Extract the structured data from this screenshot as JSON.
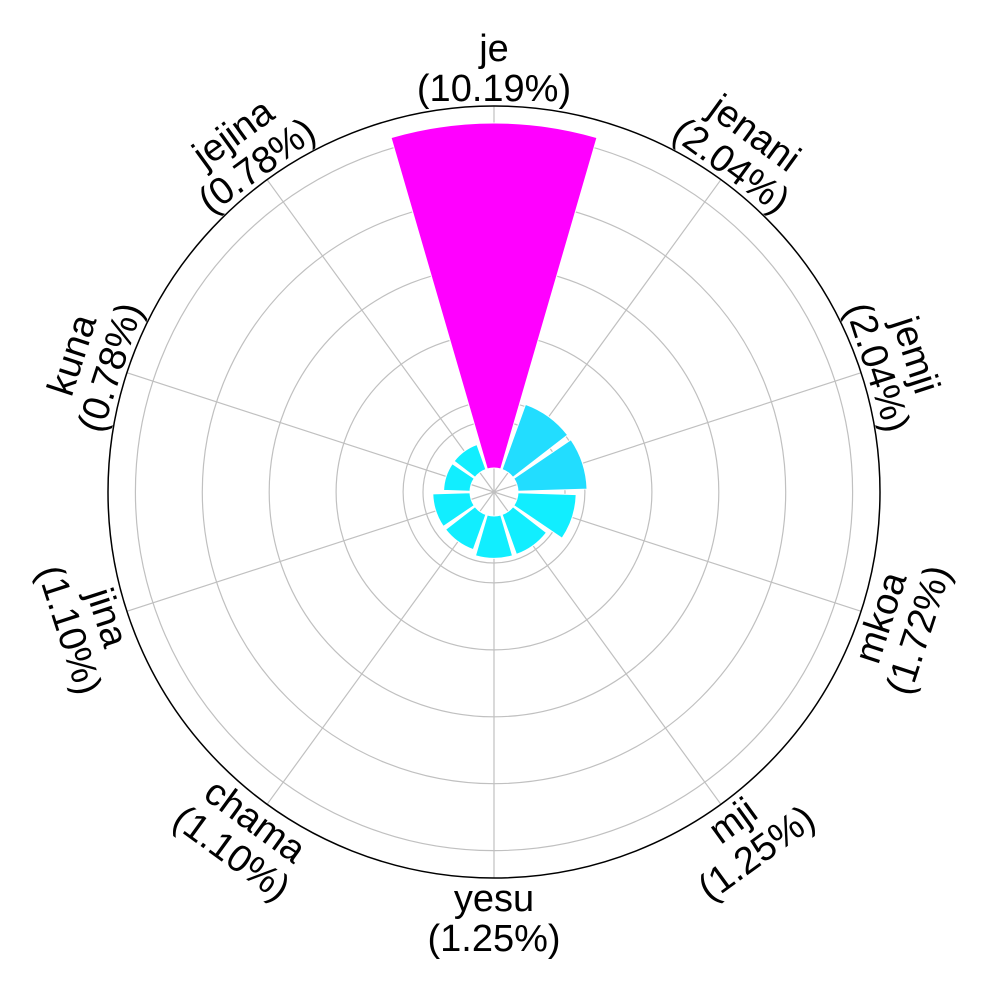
{
  "chart_data": {
    "type": "polar-bar",
    "title": "",
    "categories": [
      "je",
      "jenani",
      "jemji",
      "mkoa",
      "mji",
      "yesu",
      "chama",
      "jina",
      "kuna",
      "jejina"
    ],
    "percent_labels": [
      "(10.19%)",
      "(2.04%)",
      "(2.04%)",
      "(1.72%)",
      "(1.25%)",
      "(1.25%)",
      "(1.10%)",
      "(1.10%)",
      "(0.78%)",
      "(0.78%)"
    ],
    "values": [
      10.19,
      2.04,
      2.04,
      1.72,
      1.25,
      1.25,
      1.1,
      1.1,
      0.78,
      0.78
    ],
    "bar_colors": [
      "#ff00ff",
      "#22ddff",
      "#22ddff",
      "#11eeff",
      "#11eeff",
      "#11eeff",
      "#11eeff",
      "#11eeff",
      "#11eeff",
      "#11eeff"
    ],
    "start_angle": "top",
    "direction": "clockwise",
    "radial_max": 10.19,
    "radial_rings": 5,
    "grid": true,
    "radial_tick_labels": false
  }
}
